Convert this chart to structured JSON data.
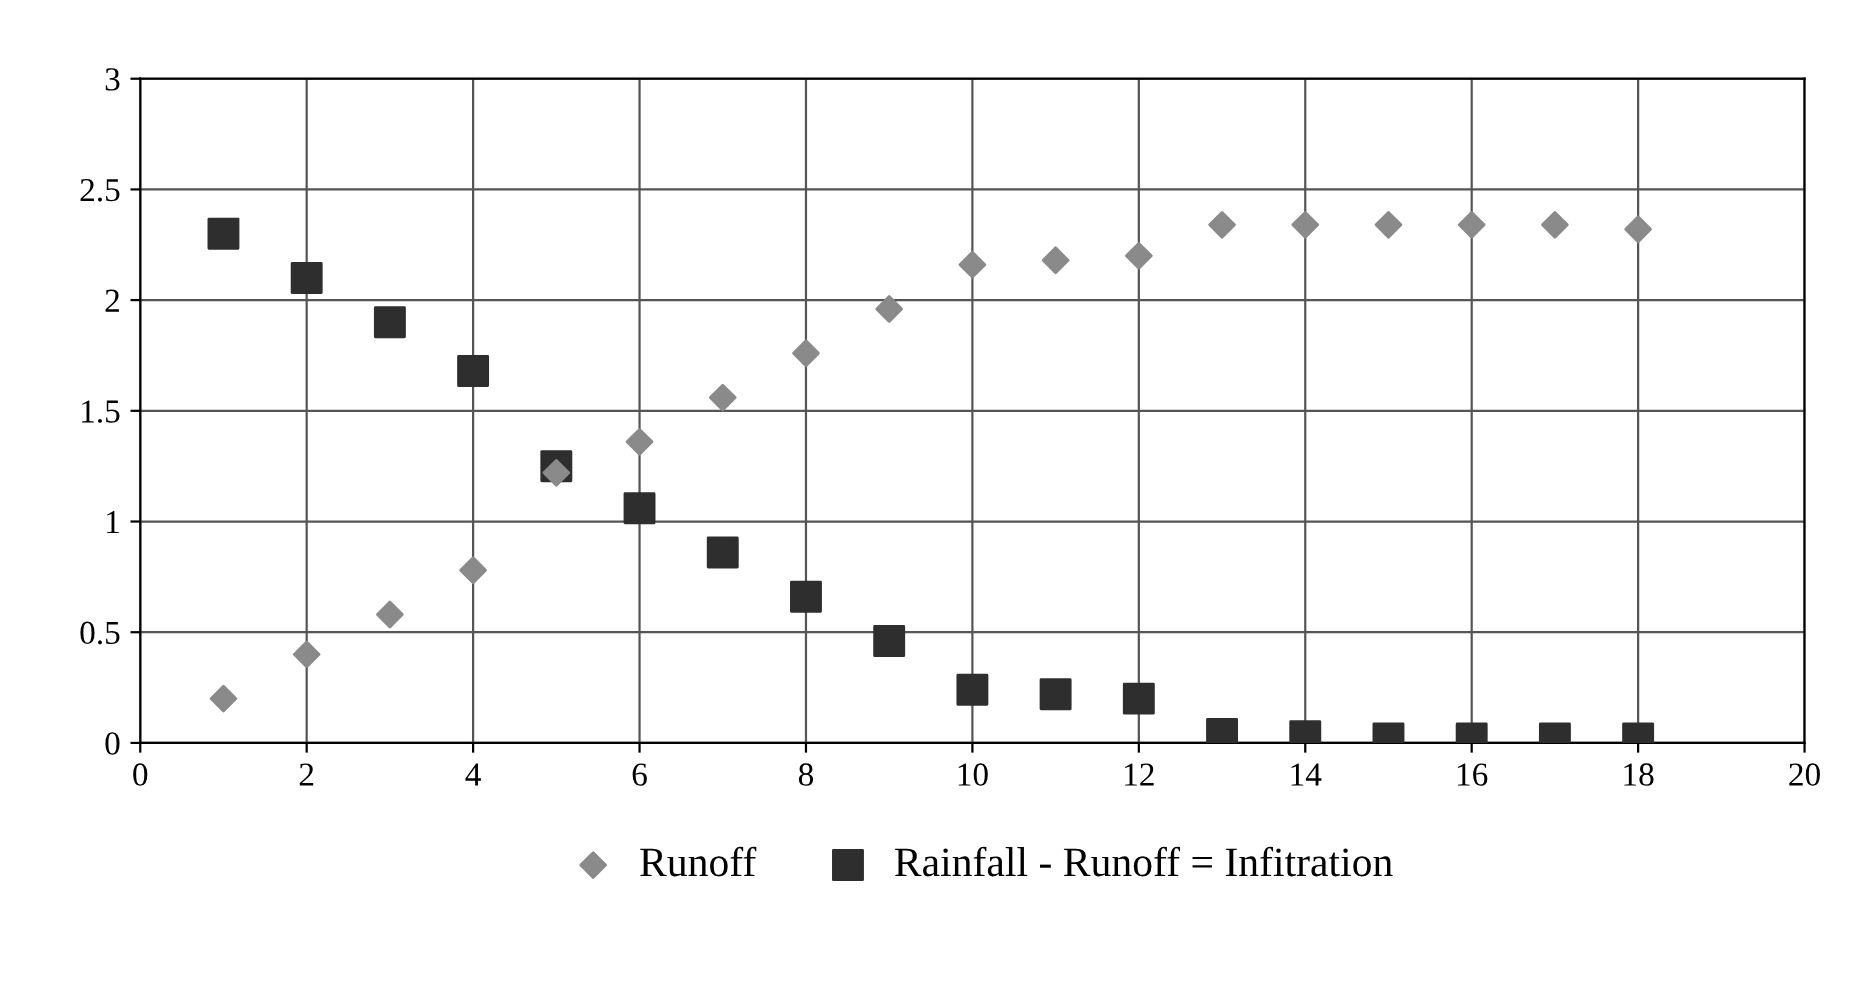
{
  "chart_data": {
    "type": "scatter",
    "x": [
      1,
      2,
      3,
      4,
      5,
      6,
      7,
      8,
      9,
      10,
      11,
      12,
      13,
      14,
      15,
      16,
      17,
      18
    ],
    "series": [
      {
        "name": "Runoff",
        "color": "#8a8a8a",
        "marker": "diamond",
        "values": [
          0.2,
          0.4,
          0.58,
          0.78,
          1.22,
          1.36,
          1.56,
          1.76,
          1.96,
          2.16,
          2.18,
          2.2,
          2.34,
          2.34,
          2.34,
          2.34,
          2.34,
          2.32
        ]
      },
      {
        "name": "Rainfall - Runoff = Infitration",
        "color": "#2e2e2e",
        "marker": "square",
        "values": [
          2.3,
          2.1,
          1.9,
          1.68,
          1.25,
          1.06,
          0.86,
          0.66,
          0.46,
          0.24,
          0.22,
          0.2,
          0.04,
          0.03,
          0.02,
          0.02,
          0.02,
          0.02
        ]
      }
    ],
    "xlim": [
      0,
      20
    ],
    "xticks": [
      0,
      2,
      4,
      6,
      8,
      10,
      12,
      14,
      16,
      18,
      20
    ],
    "ylim": [
      0,
      3
    ],
    "yticks": [
      0,
      0.5,
      1,
      1.5,
      2,
      2.5,
      3
    ],
    "grid": true,
    "legend": "bottom"
  }
}
